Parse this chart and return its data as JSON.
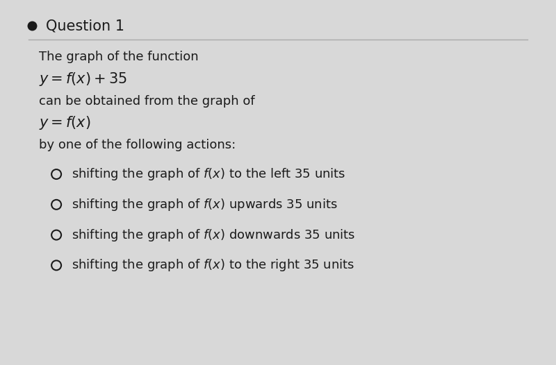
{
  "bg_color": "#d8d8d8",
  "card_color": "#f0f0f0",
  "bullet_color": "#1a1a1a",
  "title": "Question 1",
  "question_text_line1": "The graph of the function",
  "question_math1": "$y = f(x) + 35$",
  "question_text_line2": "can be obtained from the graph of",
  "question_math2": "$y = f(x)$",
  "question_text_line3": "by one of the following actions:",
  "options": [
    "shifting the graph of $f(x)$ to the left 35 units",
    "shifting the graph of $f(x)$ upwards 35 units",
    "shifting the graph of $f(x)$ downwards 35 units",
    "shifting the graph of $f(x)$ to the right 35 units"
  ],
  "title_fontsize": 15,
  "text_fontsize": 13,
  "math_fontsize": 15,
  "option_fontsize": 13,
  "text_color": "#1a1a1a",
  "separator_color": "#aaaaaa"
}
